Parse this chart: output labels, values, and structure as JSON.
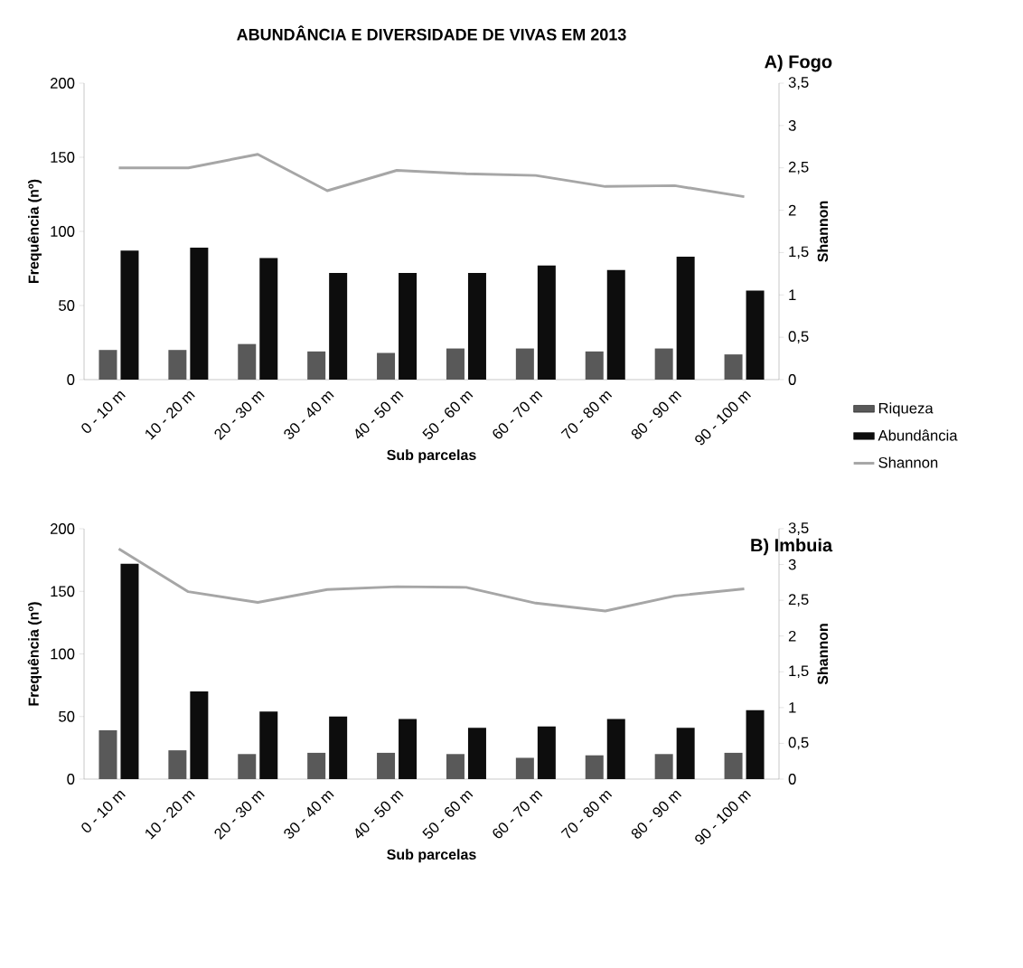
{
  "chart_data": [
    {
      "type": "bar",
      "title": "ABUNDÂNCIA E DIVERSIDADE DE VIVAS EM 2013",
      "subtitle": "A) Fogo",
      "categories": [
        "0 - 10 m",
        "10 - 20 m",
        "20 - 30 m",
        "30 - 40 m",
        "40 - 50 m",
        "50 - 60 m",
        "60 - 70 m",
        "70 - 80 m",
        "80 - 90 m",
        "90 - 100 m"
      ],
      "series": [
        {
          "name": "Riqueza",
          "color": "#595959",
          "values": [
            20,
            20,
            24,
            19,
            18,
            21,
            21,
            19,
            21,
            17
          ]
        },
        {
          "name": "Abundância",
          "color": "#0d0d0d",
          "values": [
            87,
            89,
            82,
            72,
            72,
            72,
            77,
            74,
            83,
            60
          ]
        },
        {
          "name": "Shannon",
          "color": "#a6a6a6",
          "type": "line",
          "axis": "y2",
          "values": [
            2.5,
            2.5,
            2.66,
            2.23,
            2.47,
            2.43,
            2.41,
            2.28,
            2.29,
            2.16
          ]
        }
      ],
      "xlabel": "Sub parcelas",
      "ylabel": "Frequência (nº)",
      "y2label": "Shannon",
      "ylim": [
        0,
        200
      ],
      "yticks": [
        0,
        50,
        100,
        150,
        200
      ],
      "y2lim": [
        0,
        3.5
      ],
      "y2ticks": [
        0,
        {
          "value": 0.5,
          "label": "0,5"
        },
        1,
        {
          "value": 1.5,
          "label": "1,5"
        },
        2,
        {
          "value": 2.5,
          "label": "2,5"
        },
        3,
        {
          "value": 3.5,
          "label": "3,5"
        }
      ],
      "legend": "right"
    },
    {
      "type": "bar",
      "subtitle": "B) Imbuia",
      "categories": [
        "0 - 10 m",
        "10 - 20 m",
        "20 - 30 m",
        "30 - 40 m",
        "40 - 50 m",
        "50 - 60 m",
        "60 - 70 m",
        "70 - 80 m",
        "80 - 90 m",
        "90 - 100 m"
      ],
      "series": [
        {
          "color": "#595959",
          "values": [
            39,
            23,
            20,
            21,
            21,
            20,
            17,
            19,
            20,
            21
          ]
        },
        {
          "color": "#0d0d0d",
          "values": [
            172,
            70,
            54,
            50,
            48,
            41,
            42,
            48,
            41,
            55
          ]
        },
        {
          "color": "#a6a6a6",
          "type": "line",
          "axis": "y2",
          "values": [
            3.22,
            2.62,
            2.47,
            2.65,
            2.69,
            2.68,
            2.46,
            2.35,
            2.56,
            2.66
          ]
        }
      ],
      "xlabel": "Sub parcelas",
      "ylabel": "Frequência (nº)",
      "y2label": "Shannon",
      "ylim": [
        0,
        200
      ],
      "yticks": [
        0,
        50,
        100,
        150,
        200
      ],
      "y2lim": [
        0,
        3.5
      ],
      "y2ticks": [
        0,
        {
          "value": 0.5,
          "label": "0,5"
        },
        1,
        {
          "value": 1.5,
          "label": "1,5"
        },
        2,
        {
          "value": 2.5,
          "label": "2,5"
        },
        3,
        {
          "value": 3.5,
          "label": "3,5"
        }
      ]
    }
  ]
}
